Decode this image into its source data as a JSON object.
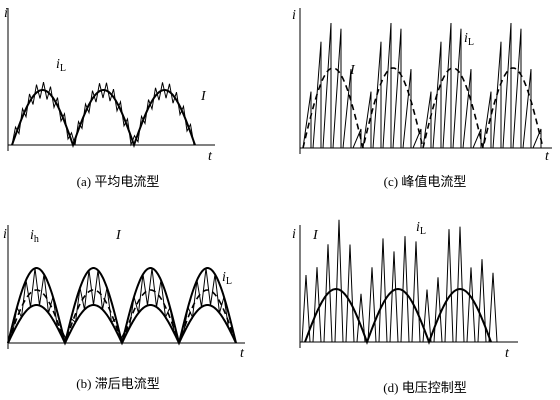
{
  "panels": [
    {
      "caption": "(a) 平均电流型",
      "y_axis": "i",
      "x_axis": "t",
      "labels": [
        {
          "text": "i",
          "sub": "L"
        },
        {
          "text": "I"
        }
      ]
    },
    {
      "caption": "(c) 峰值电流型",
      "y_axis": "i",
      "x_axis": "t",
      "labels": [
        {
          "text": "I"
        },
        {
          "text": "i",
          "sub": "L"
        }
      ]
    },
    {
      "caption": "(b) 滞后电流型",
      "y_axis": "i",
      "x_axis": "t",
      "labels": [
        {
          "text": "i",
          "sub": "h"
        },
        {
          "text": "I"
        },
        {
          "text": "i",
          "sub": "L"
        }
      ]
    },
    {
      "caption": "(d) 电压控制型",
      "y_axis": "i",
      "x_axis": "t",
      "labels": [
        {
          "text": "I"
        },
        {
          "text": "i",
          "sub": "L"
        }
      ]
    }
  ]
}
